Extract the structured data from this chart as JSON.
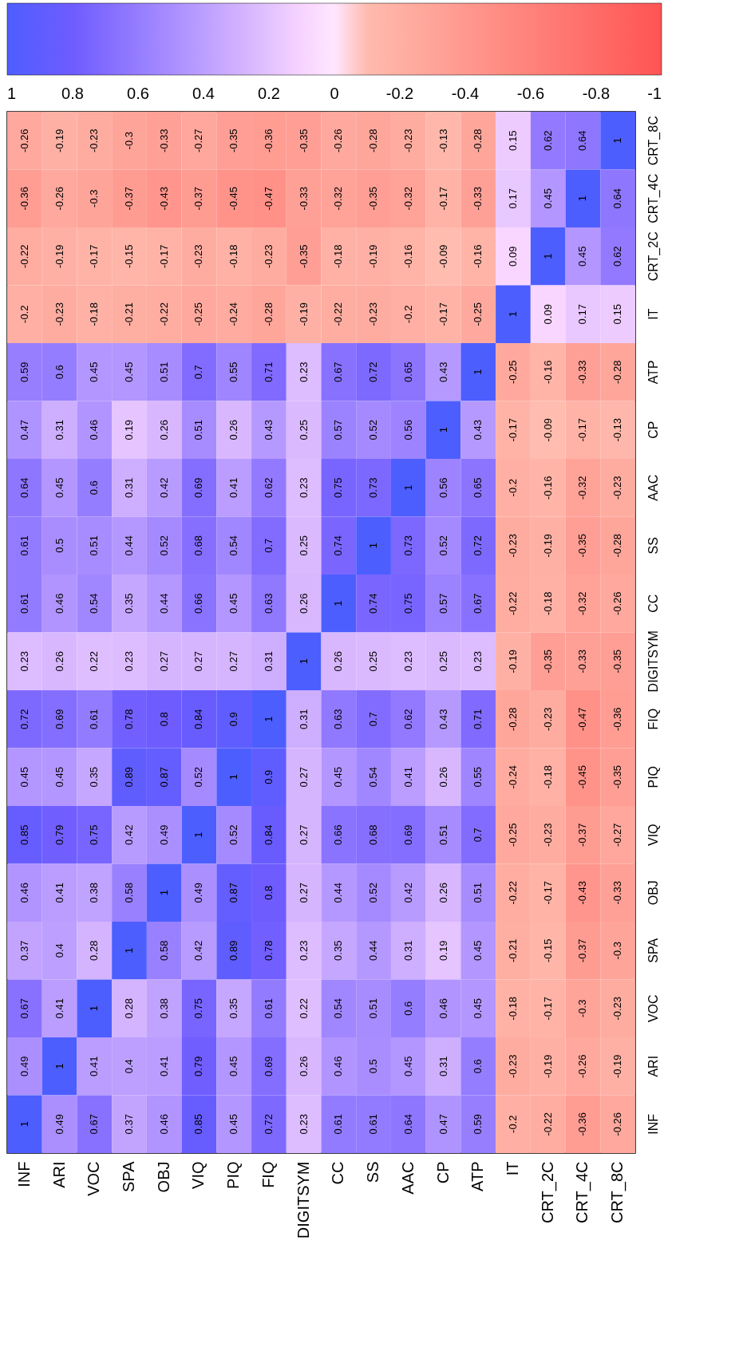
{
  "chart_data": {
    "type": "heatmap",
    "categories": [
      "INF",
      "ARI",
      "VOC",
      "SPA",
      "OBJ",
      "VIQ",
      "PIQ",
      "FIQ",
      "DIGITSYM",
      "CC",
      "SS",
      "AAC",
      "CP",
      "ATP",
      "IT",
      "CRT_2C",
      "CRT_4C",
      "CRT_8C"
    ],
    "y_categories": [
      "CRT_8C",
      "CRT_4C",
      "CRT_2C",
      "IT",
      "ATP",
      "CP",
      "AAC",
      "SS",
      "CC",
      "DIGITSYM",
      "FIQ",
      "PIQ",
      "VIQ",
      "OBJ",
      "SPA",
      "VOC",
      "ARI",
      "INF"
    ],
    "cells": [
      [
        -0.26,
        -0.19,
        -0.23,
        -0.3,
        -0.33,
        -0.27,
        -0.35,
        -0.36,
        -0.35,
        -0.26,
        -0.28,
        -0.23,
        -0.13,
        -0.28,
        0.15,
        0.62,
        0.64,
        1
      ],
      [
        -0.36,
        -0.26,
        -0.3,
        -0.37,
        -0.43,
        -0.37,
        -0.45,
        -0.47,
        -0.33,
        -0.32,
        -0.35,
        -0.32,
        -0.17,
        -0.33,
        0.17,
        0.45,
        1,
        0.64
      ],
      [
        -0.22,
        -0.19,
        -0.17,
        -0.15,
        -0.17,
        -0.23,
        -0.18,
        -0.23,
        -0.35,
        -0.18,
        -0.19,
        -0.16,
        -0.09,
        -0.16,
        0.09,
        1,
        0.45,
        0.62
      ],
      [
        -0.2,
        -0.23,
        -0.18,
        -0.21,
        -0.22,
        -0.25,
        -0.24,
        -0.28,
        -0.19,
        -0.22,
        -0.23,
        -0.2,
        -0.17,
        -0.25,
        1,
        0.09,
        0.17,
        0.15
      ],
      [
        0.59,
        0.6,
        0.45,
        0.45,
        0.51,
        0.7,
        0.55,
        0.71,
        0.23,
        0.67,
        0.72,
        0.65,
        0.43,
        1,
        -0.25,
        -0.16,
        -0.33,
        -0.28
      ],
      [
        0.47,
        0.31,
        0.46,
        0.19,
        0.26,
        0.51,
        0.26,
        0.43,
        0.25,
        0.57,
        0.52,
        0.56,
        1,
        0.43,
        -0.17,
        -0.09,
        -0.17,
        -0.13
      ],
      [
        0.64,
        0.45,
        0.6,
        0.31,
        0.42,
        0.69,
        0.41,
        0.62,
        0.23,
        0.75,
        0.73,
        1,
        0.56,
        0.65,
        -0.2,
        -0.16,
        -0.32,
        -0.23
      ],
      [
        0.61,
        0.5,
        0.51,
        0.44,
        0.52,
        0.68,
        0.54,
        0.7,
        0.25,
        0.74,
        1,
        0.73,
        0.52,
        0.72,
        -0.23,
        -0.19,
        -0.35,
        -0.28
      ],
      [
        0.61,
        0.46,
        0.54,
        0.35,
        0.44,
        0.66,
        0.45,
        0.63,
        0.26,
        1,
        0.74,
        0.75,
        0.57,
        0.67,
        -0.22,
        -0.18,
        -0.32,
        -0.26
      ],
      [
        0.23,
        0.26,
        0.22,
        0.23,
        0.27,
        0.27,
        0.27,
        0.31,
        1,
        0.26,
        0.25,
        0.23,
        0.25,
        0.23,
        -0.19,
        -0.35,
        -0.33,
        -0.35
      ],
      [
        0.72,
        0.69,
        0.61,
        0.78,
        0.8,
        0.84,
        0.9,
        1,
        0.31,
        0.63,
        0.7,
        0.62,
        0.43,
        0.71,
        -0.28,
        -0.23,
        -0.47,
        -0.36
      ],
      [
        0.45,
        0.45,
        0.35,
        0.89,
        0.87,
        0.52,
        1,
        0.9,
        0.27,
        0.45,
        0.54,
        0.41,
        0.26,
        0.55,
        -0.24,
        -0.18,
        -0.45,
        -0.35
      ],
      [
        0.85,
        0.79,
        0.75,
        0.42,
        0.49,
        1,
        0.52,
        0.84,
        0.27,
        0.66,
        0.68,
        0.69,
        0.51,
        0.7,
        -0.25,
        -0.23,
        -0.37,
        -0.27
      ],
      [
        0.46,
        0.41,
        0.38,
        0.58,
        1,
        0.49,
        0.87,
        0.8,
        0.27,
        0.44,
        0.52,
        0.42,
        0.26,
        0.51,
        -0.22,
        -0.17,
        -0.43,
        -0.33
      ],
      [
        0.37,
        0.4,
        0.28,
        1,
        0.58,
        0.42,
        0.89,
        0.78,
        0.23,
        0.35,
        0.44,
        0.31,
        0.19,
        0.45,
        -0.21,
        -0.15,
        -0.37,
        -0.3
      ],
      [
        0.67,
        0.41,
        1,
        0.28,
        0.38,
        0.75,
        0.35,
        0.61,
        0.22,
        0.54,
        0.51,
        0.6,
        0.46,
        0.45,
        -0.18,
        -0.17,
        -0.3,
        -0.23
      ],
      [
        0.49,
        1,
        0.41,
        0.4,
        0.41,
        0.79,
        0.45,
        0.69,
        0.26,
        0.46,
        0.5,
        0.45,
        0.31,
        0.6,
        -0.23,
        -0.19,
        -0.26,
        -0.19
      ],
      [
        1,
        0.49,
        0.67,
        0.37,
        0.46,
        0.85,
        0.45,
        0.72,
        0.23,
        0.61,
        0.61,
        0.64,
        0.47,
        0.59,
        -0.2,
        -0.22,
        -0.36,
        -0.26
      ]
    ],
    "clim": [
      -1,
      1
    ],
    "cticks": [
      1,
      0.8,
      0.6,
      0.4,
      0.2,
      0,
      -0.2,
      -0.4,
      -0.6,
      -0.8,
      -1
    ],
    "data_labels": true
  }
}
